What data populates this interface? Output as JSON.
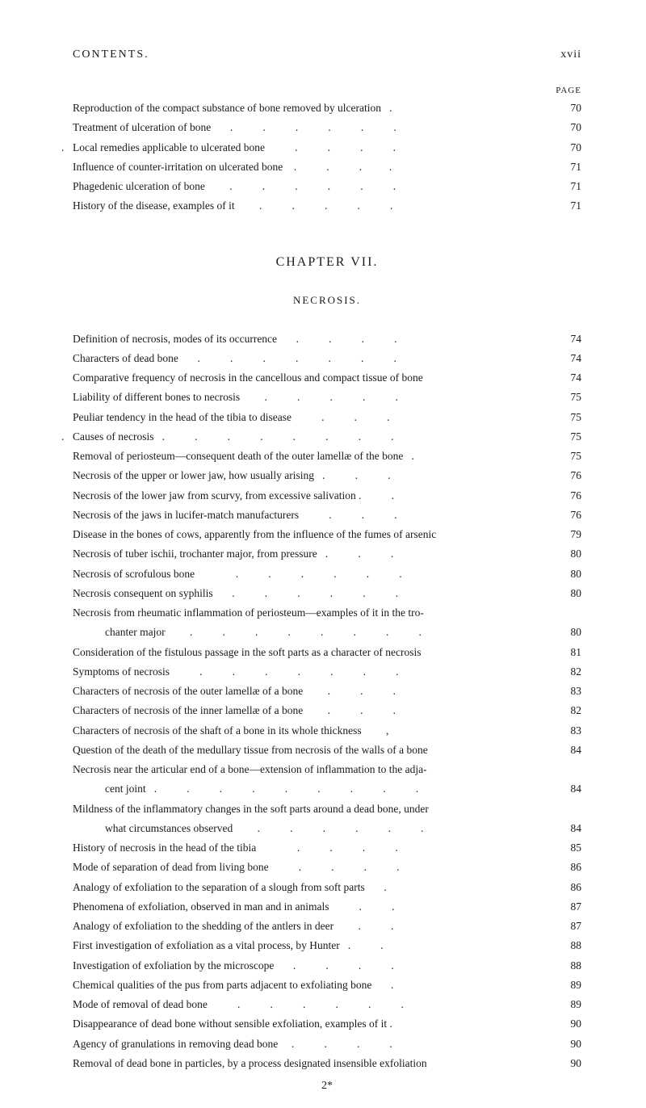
{
  "header": {
    "title": "CONTENTS.",
    "romanPage": "xvii"
  },
  "pageLabel": "PAGE",
  "topEntries": [
    {
      "text": "Reproduction of the compact substance of bone removed by ulceration   .",
      "page": "70"
    },
    {
      "text": "Treatment of ulceration of bone       .           .           .           .           .           .",
      "page": "70"
    },
    {
      "text": "Local remedies applicable to ulcerated bone           .           .           .           .",
      "page": "70",
      "prefix": ". "
    },
    {
      "text": "Influence of counter-irritation on ulcerated bone    .           .           .          .",
      "page": "71"
    },
    {
      "text": "Phagedenic ulceration of bone         .           .           .           .           .           .",
      "page": "71"
    },
    {
      "text": "History of the disease, examples of it         .           .           .           .           .",
      "page": "71"
    }
  ],
  "chapter": {
    "title": "CHAPTER VII.",
    "section": "NECROSIS."
  },
  "mainEntries": [
    {
      "text": "Definition of necrosis, modes of its occurrence       .           .           .           .",
      "page": "74"
    },
    {
      "text": "Characters of dead bone       .           .           .           .           .           .           .",
      "page": "74"
    },
    {
      "text": "Comparative frequency of necrosis in the cancellous and compact tissue of bone",
      "page": "74"
    },
    {
      "text": "Liability of different bones to necrosis         .           .           .           .           .",
      "page": "75"
    },
    {
      "text": "Peuliar tendency in the head of the tibia to disease           .           .           .",
      "page": "75"
    },
    {
      "text": "Causes of necrosis   .           .           .           .           .           .           .           .",
      "page": "75",
      "prefix": ". "
    },
    {
      "text": "Removal of periosteum—consequent death of the outer lamellæ of the bone   .",
      "page": "75"
    },
    {
      "text": "Necrosis of the upper or lower jaw, how usually arising   .           .           .",
      "page": "76"
    },
    {
      "text": "Necrosis of the lower jaw from scurvy, from excessive salivation .           .",
      "page": "76"
    },
    {
      "text": "Necrosis of the jaws in lucifer-match manufacturers           .           .           .",
      "page": "76"
    },
    {
      "text": "Disease in the bones of cows, apparently from the influence of the fumes of arsenic",
      "page": "79"
    },
    {
      "text": "Necrosis of tuber ischii, trochanter major, from pressure   .           .           .",
      "page": "80"
    },
    {
      "text": "Necrosis of scrofulous bone               .           .           .           .           .           .",
      "page": "80"
    },
    {
      "text": "Necrosis consequent on syphilis       .           .           .           .           .           .",
      "page": "80"
    },
    {
      "text": "Necrosis from rheumatic inflammation of periosteum—examples of it in the tro-",
      "page": "",
      "noPageNum": true
    },
    {
      "text": "chanter major         .           .           .           .           .           .           .           .",
      "page": "80",
      "indent": true
    },
    {
      "text": "Consideration of the fistulous passage in the soft parts as a character of necrosis",
      "page": "81"
    },
    {
      "text": "Symptoms of necrosis           .           .           .           .           .           .           .",
      "page": "82"
    },
    {
      "text": "Characters of necrosis of the outer lamellæ of a bone         .           .           .",
      "page": "83"
    },
    {
      "text": "Characters of necrosis of the inner lamellæ of a bone         .           .           .",
      "page": "82"
    },
    {
      "text": "Characters of necrosis of the shaft of a bone in its whole thickness         ,",
      "page": "83"
    },
    {
      "text": "Question of the death of the medullary tissue from necrosis of the walls of a bone",
      "page": "84"
    },
    {
      "text": "Necrosis near the articular end of a bone—extension of inflammation to the adja-",
      "page": "",
      "noPageNum": true
    },
    {
      "text": "cent joint   .           .           .           .           .           .           .           .           .",
      "page": "84",
      "indent": true
    },
    {
      "text": "Mildness of the inflammatory changes in the soft parts around a dead bone, under",
      "page": "",
      "noPageNum": true
    },
    {
      "text": "what circumstances observed         .           .           .           .           .           .",
      "page": "84",
      "indent": true
    },
    {
      "text": "History of necrosis in the head of the tibia               .           .           .           .",
      "page": "85"
    },
    {
      "text": "Mode of separation of dead from living bone           .           .           .           .",
      "page": "86"
    },
    {
      "text": "Analogy of exfoliation to the separation of a slough from soft parts       .",
      "page": "86"
    },
    {
      "text": "Phenomena of exfoliation, observed in man and in animals           .           .",
      "page": "87"
    },
    {
      "text": "Analogy of exfoliation to the shedding of the antlers in deer         .           .",
      "page": "87"
    },
    {
      "text": "First investigation of exfoliation as a vital process, by Hunter   .           .",
      "page": "88"
    },
    {
      "text": "Investigation of exfoliation by the microscope       .           .           .           .",
      "page": "88"
    },
    {
      "text": "Chemical qualities of the pus from parts adjacent to exfoliating bone       .",
      "page": "89"
    },
    {
      "text": "Mode of removal of dead bone           .           .           .           .           .           .",
      "page": "89"
    },
    {
      "text": "Disappearance of dead bone without sensible exfoliation, examples of it .",
      "page": "90"
    },
    {
      "text": "Agency of granulations in removing dead bone     .           .           .           .",
      "page": "90"
    },
    {
      "text": "Removal of dead bone in particles, by a process designated insensible exfoliation",
      "page": "90"
    }
  ],
  "signatureMark": "2*",
  "colors": {
    "background": "#ffffff",
    "text": "#1a1a1a"
  },
  "typography": {
    "bodyFontSize": 13.5,
    "headerFontSize": 14,
    "chapterFontSize": 16,
    "sectionFontSize": 13
  }
}
